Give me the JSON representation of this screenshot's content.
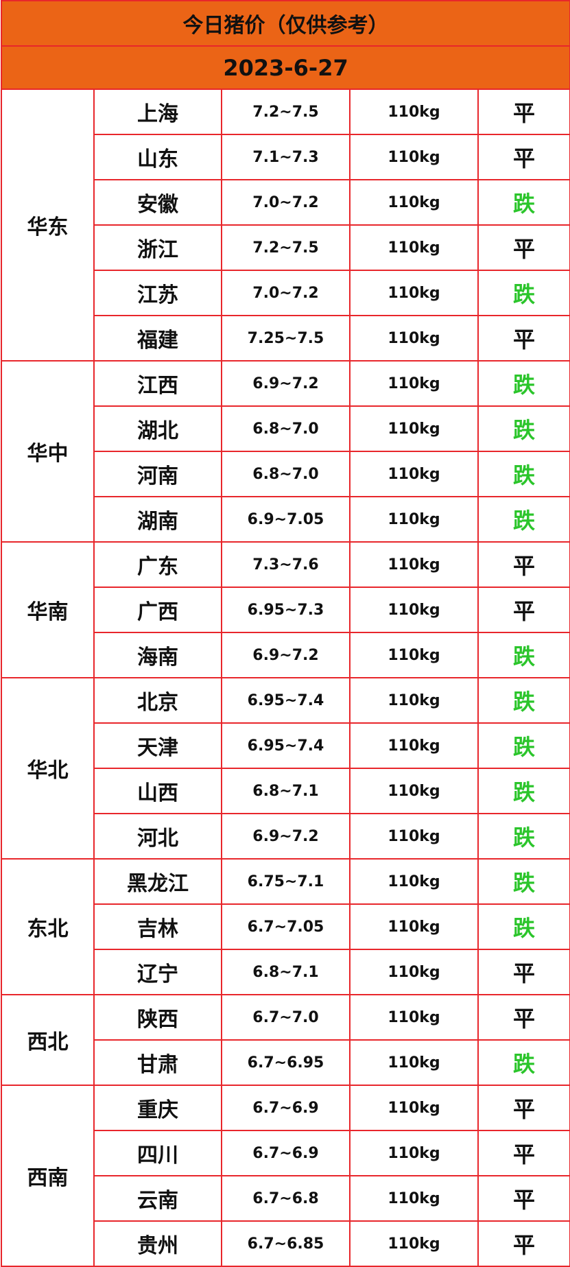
{
  "header": {
    "title": "今日猪价（仅供参考）",
    "date": "2023-6-27",
    "background": "#eb6416"
  },
  "table": {
    "border_color": "#e8262b",
    "regions": [
      {
        "name": "华东",
        "rows": [
          {
            "province": "上海",
            "price": "7.2~7.5",
            "weight": "110kg",
            "trend": "平",
            "trend_color": "#111111"
          },
          {
            "province": "山东",
            "price": "7.1~7.3",
            "weight": "110kg",
            "trend": "平",
            "trend_color": "#111111"
          },
          {
            "province": "安徽",
            "price": "7.0~7.2",
            "weight": "110kg",
            "trend": "跌",
            "trend_color": "#2bc52b"
          },
          {
            "province": "浙江",
            "price": "7.2~7.5",
            "weight": "110kg",
            "trend": "平",
            "trend_color": "#111111"
          },
          {
            "province": "江苏",
            "price": "7.0~7.2",
            "weight": "110kg",
            "trend": "跌",
            "trend_color": "#2bc52b"
          },
          {
            "province": "福建",
            "price": "7.25~7.5",
            "weight": "110kg",
            "trend": "平",
            "trend_color": "#111111"
          }
        ]
      },
      {
        "name": "华中",
        "rows": [
          {
            "province": "江西",
            "price": "6.9~7.2",
            "weight": "110kg",
            "trend": "跌",
            "trend_color": "#2bc52b"
          },
          {
            "province": "湖北",
            "price": "6.8~7.0",
            "weight": "110kg",
            "trend": "跌",
            "trend_color": "#2bc52b"
          },
          {
            "province": "河南",
            "price": "6.8~7.0",
            "weight": "110kg",
            "trend": "跌",
            "trend_color": "#2bc52b"
          },
          {
            "province": "湖南",
            "price": "6.9~7.05",
            "weight": "110kg",
            "trend": "跌",
            "trend_color": "#2bc52b"
          }
        ]
      },
      {
        "name": "华南",
        "rows": [
          {
            "province": "广东",
            "price": "7.3~7.6",
            "weight": "110kg",
            "trend": "平",
            "trend_color": "#111111"
          },
          {
            "province": "广西",
            "price": "6.95~7.3",
            "weight": "110kg",
            "trend": "平",
            "trend_color": "#111111"
          },
          {
            "province": "海南",
            "price": "6.9~7.2",
            "weight": "110kg",
            "trend": "跌",
            "trend_color": "#2bc52b"
          }
        ]
      },
      {
        "name": "华北",
        "rows": [
          {
            "province": "北京",
            "price": "6.95~7.4",
            "weight": "110kg",
            "trend": "跌",
            "trend_color": "#2bc52b"
          },
          {
            "province": "天津",
            "price": "6.95~7.4",
            "weight": "110kg",
            "trend": "跌",
            "trend_color": "#2bc52b"
          },
          {
            "province": "山西",
            "price": "6.8~7.1",
            "weight": "110kg",
            "trend": "跌",
            "trend_color": "#2bc52b"
          },
          {
            "province": "河北",
            "price": "6.9~7.2",
            "weight": "110kg",
            "trend": "跌",
            "trend_color": "#2bc52b"
          }
        ]
      },
      {
        "name": "东北",
        "rows": [
          {
            "province": "黑龙江",
            "price": "6.75~7.1",
            "weight": "110kg",
            "trend": "跌",
            "trend_color": "#2bc52b"
          },
          {
            "province": "吉林",
            "price": "6.7~7.05",
            "weight": "110kg",
            "trend": "跌",
            "trend_color": "#2bc52b"
          },
          {
            "province": "辽宁",
            "price": "6.8~7.1",
            "weight": "110kg",
            "trend": "平",
            "trend_color": "#111111"
          }
        ]
      },
      {
        "name": "西北",
        "rows": [
          {
            "province": "陕西",
            "price": "6.7~7.0",
            "weight": "110kg",
            "trend": "平",
            "trend_color": "#111111"
          },
          {
            "province": "甘肃",
            "price": "6.7~6.95",
            "weight": "110kg",
            "trend": "跌",
            "trend_color": "#2bc52b"
          }
        ]
      },
      {
        "name": "西南",
        "rows": [
          {
            "province": "重庆",
            "price": "6.7~6.9",
            "weight": "110kg",
            "trend": "平",
            "trend_color": "#111111"
          },
          {
            "province": "四川",
            "price": "6.7~6.9",
            "weight": "110kg",
            "trend": "平",
            "trend_color": "#111111"
          },
          {
            "province": "云南",
            "price": "6.7~6.8",
            "weight": "110kg",
            "trend": "平",
            "trend_color": "#111111"
          },
          {
            "province": "贵州",
            "price": "6.7~6.85",
            "weight": "110kg",
            "trend": "平",
            "trend_color": "#111111"
          }
        ]
      }
    ]
  }
}
